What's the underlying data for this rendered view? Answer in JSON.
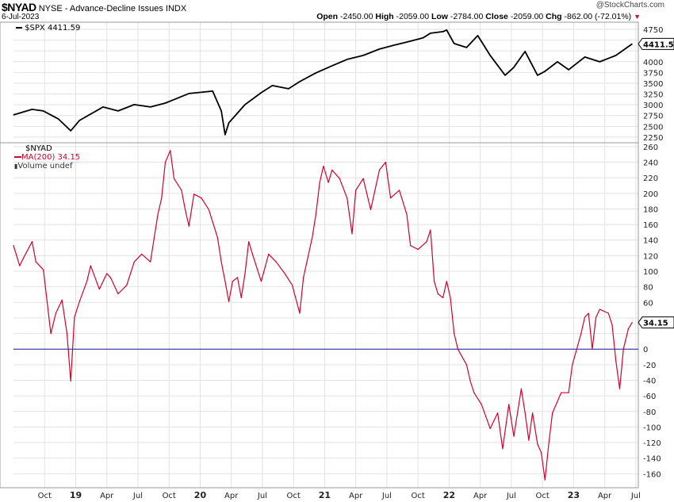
{
  "header": {
    "symbol": "$NYAD",
    "name": "NYSE - Advance-Decline Issues INDX",
    "date": "6-Jul-2023",
    "watermark": "@StockCharts.com",
    "open_label": "Open",
    "open": "-2450.00",
    "high_label": "High",
    "high": "-2059.00",
    "low_label": "Low",
    "low": "-2784.00",
    "close_label": "Close",
    "close": "-2059.00",
    "chg_label": "Chg",
    "chg": "-862.00 (-72.01%)",
    "chg_arrow": "▼",
    "down_color": "#c8102e"
  },
  "upper_panel": {
    "legend": "$SPX 4411.59",
    "last_value": "4411.59"
  },
  "lower_panel": {
    "legend_symbol": "$NYAD",
    "legend_ma": "MA(200) 34.15",
    "legend_volume": "Volume undef",
    "last_value": "34.15",
    "line_color": "#d4002a",
    "zero_line_color": "#1a1aa0"
  },
  "chart_data": [
    {
      "type": "line",
      "title": "$SPX",
      "ylim": [
        2120,
        4915
      ],
      "yticks": [
        2250,
        2500,
        2750,
        3000,
        3250,
        3500,
        3750,
        4000,
        4250,
        4500,
        4750
      ],
      "color": "#000000",
      "x": [
        2018.5,
        2018.65,
        2018.74,
        2018.86,
        2018.96,
        2019.03,
        2019.22,
        2019.34,
        2019.47,
        2019.6,
        2019.72,
        2019.91,
        2020.1,
        2020.17,
        2020.2,
        2020.23,
        2020.36,
        2020.49,
        2020.58,
        2020.71,
        2020.8,
        2020.93,
        2021.06,
        2021.18,
        2021.31,
        2021.44,
        2021.56,
        2021.69,
        2021.79,
        2021.85,
        2021.95,
        2021.98,
        2022.04,
        2022.14,
        2022.23,
        2022.33,
        2022.45,
        2022.52,
        2022.61,
        2022.71,
        2022.77,
        2022.87,
        2022.96,
        2023.09,
        2023.21,
        2023.34,
        2023.47
      ],
      "values": [
        2765,
        2894,
        2857,
        2673,
        2397,
        2636,
        2950,
        2857,
        3004,
        2950,
        3040,
        3262,
        3317,
        2857,
        2305,
        2581,
        3004,
        3280,
        3446,
        3372,
        3538,
        3740,
        3906,
        4053,
        4145,
        4292,
        4384,
        4476,
        4550,
        4660,
        4697,
        4734,
        4421,
        4329,
        4605,
        4145,
        3685,
        3869,
        4237,
        3685,
        3777,
        3998,
        3814,
        4108,
        3998,
        4145,
        4411.59
      ]
    },
    {
      "type": "line",
      "title": "$NYAD MA(200)",
      "ylim": [
        -178,
        265
      ],
      "yticks": [
        260,
        240,
        220,
        200,
        180,
        160,
        140,
        120,
        100,
        80,
        60,
        40,
        20,
        0,
        -20,
        -40,
        -60,
        -80,
        -100,
        -120,
        -140,
        -160
      ],
      "reference_line": 0,
      "x": [
        2018.5,
        2018.55,
        2018.58,
        2018.65,
        2018.68,
        2018.74,
        2018.77,
        2018.8,
        2018.84,
        2018.89,
        2018.93,
        2018.96,
        2018.99,
        2019.03,
        2019.09,
        2019.12,
        2019.19,
        2019.25,
        2019.28,
        2019.34,
        2019.41,
        2019.47,
        2019.53,
        2019.6,
        2019.66,
        2019.69,
        2019.72,
        2019.76,
        2019.79,
        2019.85,
        2019.88,
        2019.91,
        2019.95,
        2020.01,
        2020.07,
        2020.14,
        2020.17,
        2020.2,
        2020.23,
        2020.26,
        2020.3,
        2020.33,
        2020.36,
        2020.39,
        2020.42,
        2020.49,
        2020.55,
        2020.61,
        2020.68,
        2020.74,
        2020.8,
        2020.83,
        2020.9,
        2020.93,
        2020.96,
        2020.99,
        2021.03,
        2021.06,
        2021.12,
        2021.18,
        2021.22,
        2021.25,
        2021.31,
        2021.37,
        2021.44,
        2021.49,
        2021.53,
        2021.6,
        2021.66,
        2021.69,
        2021.75,
        2021.82,
        2021.85,
        2021.88,
        2021.91,
        2021.95,
        2021.98,
        2022.01,
        2022.04,
        2022.07,
        2022.14,
        2022.17,
        2022.2,
        2022.26,
        2022.33,
        2022.39,
        2022.43,
        2022.48,
        2022.52,
        2022.58,
        2022.61,
        2022.64,
        2022.67,
        2022.71,
        2022.74,
        2022.77,
        2022.8,
        2022.83,
        2022.9,
        2022.96,
        2022.99,
        2023.06,
        2023.09,
        2023.12,
        2023.15,
        2023.18,
        2023.21,
        2023.28,
        2023.31,
        2023.34,
        2023.37,
        2023.4,
        2023.44,
        2023.47
      ],
      "values": [
        133,
        107,
        117,
        138,
        112,
        102,
        61,
        20,
        46,
        63,
        20,
        -41,
        41,
        61,
        87,
        107,
        77,
        97,
        92,
        71,
        82,
        112,
        122,
        112,
        173,
        194,
        240,
        255,
        219,
        204,
        179,
        158,
        199,
        194,
        179,
        143,
        112,
        87,
        61,
        87,
        92,
        66,
        97,
        138,
        122,
        87,
        122,
        112,
        97,
        82,
        46,
        92,
        143,
        173,
        214,
        235,
        214,
        230,
        219,
        194,
        148,
        204,
        219,
        179,
        230,
        240,
        194,
        204,
        173,
        133,
        128,
        138,
        153,
        87,
        71,
        66,
        87,
        66,
        20,
        0,
        -20,
        -41,
        -56,
        -71,
        -102,
        -82,
        -128,
        -71,
        -112,
        -51,
        -82,
        -117,
        -82,
        -122,
        -133,
        -168,
        -122,
        -82,
        -56,
        -56,
        -20,
        20,
        41,
        46,
        0,
        41,
        51,
        46,
        31,
        -15,
        -51,
        0,
        26,
        34.15
      ]
    }
  ],
  "x_axis": {
    "ticks": [
      {
        "t": 2018.75,
        "label": "Oct"
      },
      {
        "t": 2019.0,
        "label": "19"
      },
      {
        "t": 2019.25,
        "label": "Apr"
      },
      {
        "t": 2019.5,
        "label": "Jul"
      },
      {
        "t": 2019.75,
        "label": "Oct"
      },
      {
        "t": 2020.0,
        "label": "20"
      },
      {
        "t": 2020.25,
        "label": "Apr"
      },
      {
        "t": 2020.5,
        "label": "Jul"
      },
      {
        "t": 2020.75,
        "label": "Oct"
      },
      {
        "t": 2021.0,
        "label": "21"
      },
      {
        "t": 2021.25,
        "label": "Apr"
      },
      {
        "t": 2021.5,
        "label": "Jul"
      },
      {
        "t": 2021.75,
        "label": "Oct"
      },
      {
        "t": 2022.0,
        "label": "22"
      },
      {
        "t": 2022.25,
        "label": "Apr"
      },
      {
        "t": 2022.5,
        "label": "Jul"
      },
      {
        "t": 2022.75,
        "label": "Oct"
      },
      {
        "t": 2023.0,
        "label": "23"
      },
      {
        "t": 2023.25,
        "label": "Apr"
      },
      {
        "t": 2023.5,
        "label": "Jul"
      }
    ],
    "range": [
      2018.5,
      2023.52
    ]
  }
}
